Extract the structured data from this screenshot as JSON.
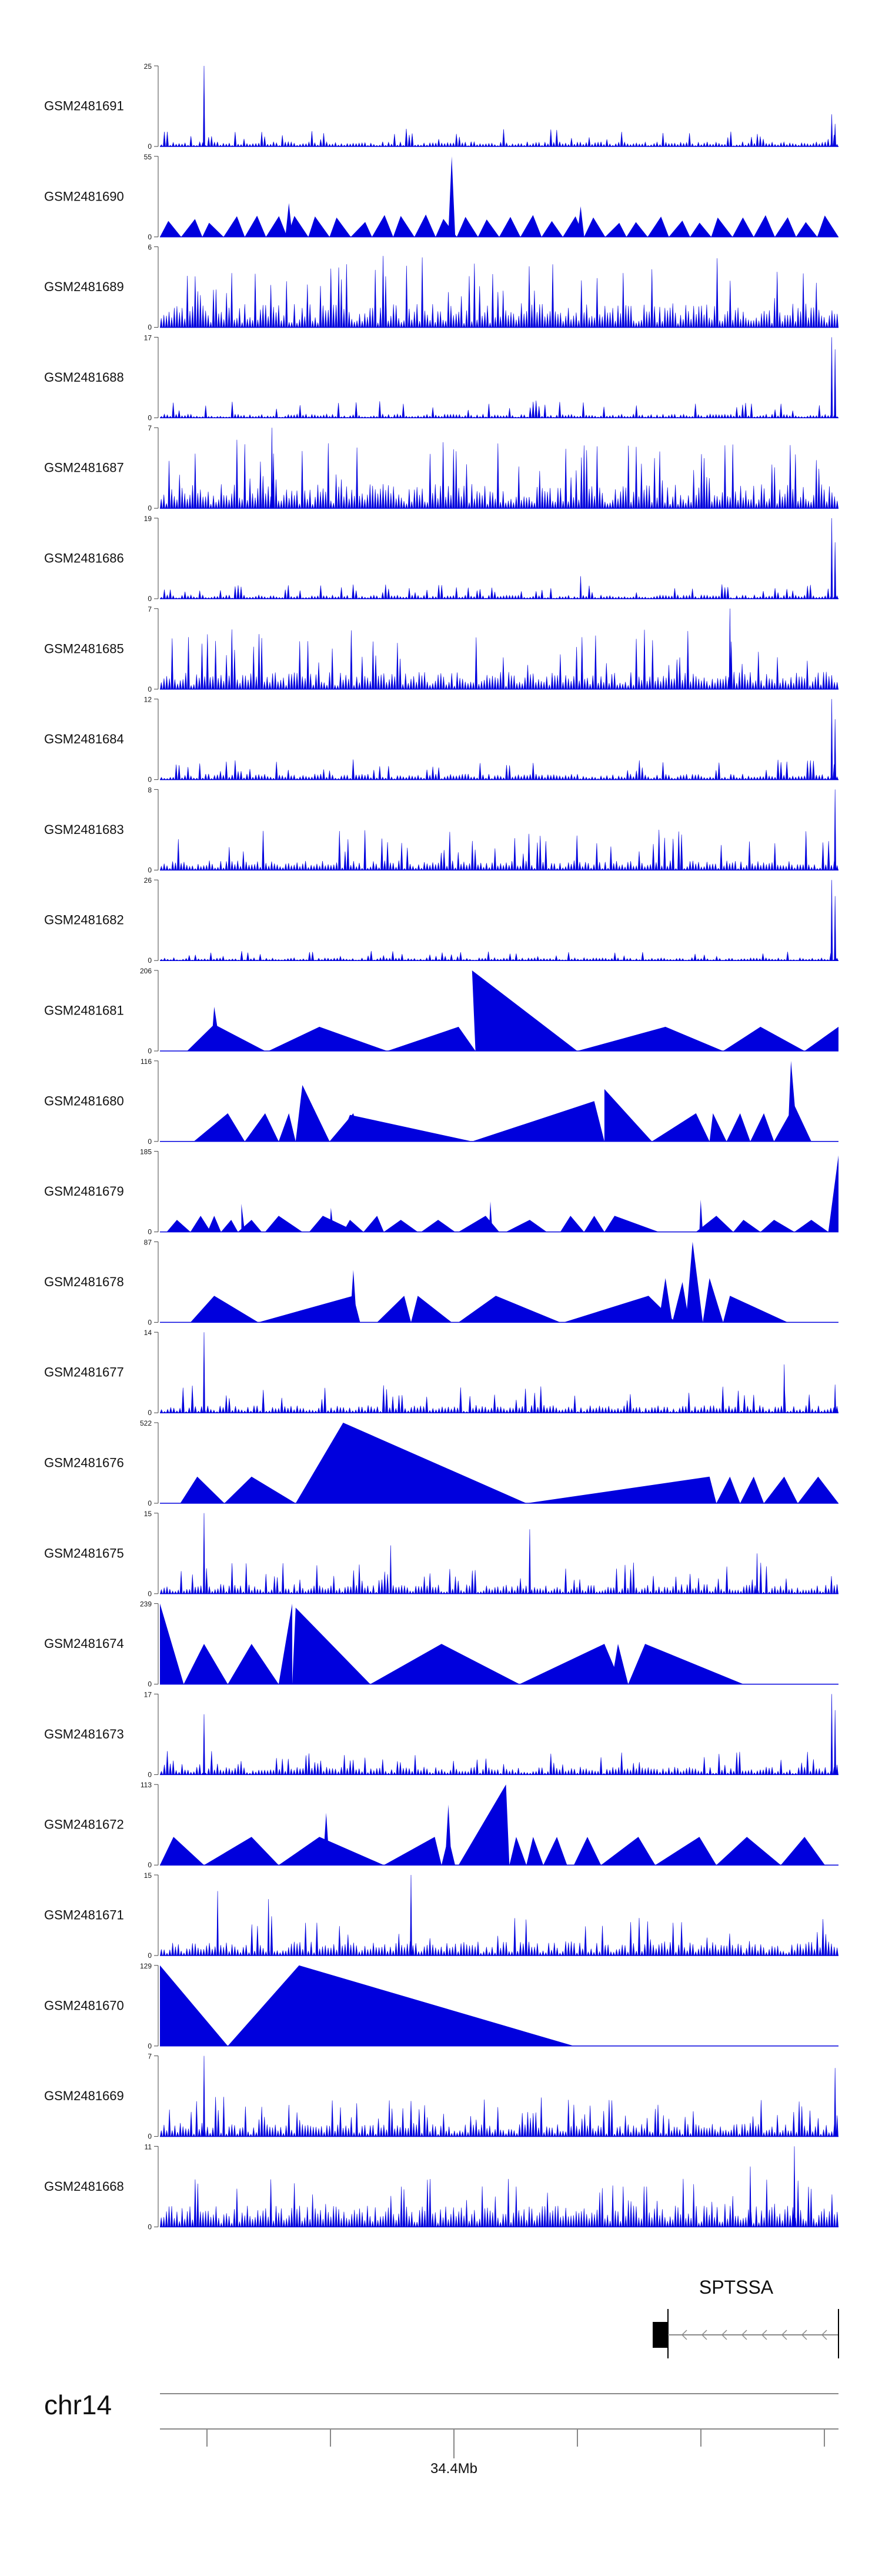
{
  "chart_data": {
    "type": "area",
    "title": "",
    "chromosome": "chr14",
    "xlabel": "34.4Mb",
    "gene": {
      "name": "SPTSSA",
      "strand": "-"
    },
    "colors": {
      "signal": "#0000dd",
      "axis": "#444444",
      "text": "#111111",
      "gene": "#000000"
    },
    "ylim_min": 0,
    "tracks": [
      {
        "name": "GSM2481691",
        "ymax": 25,
        "pattern": "spiky",
        "density": 230,
        "base": 0.05,
        "spike": 0.22,
        "seed": 11,
        "peaks": [
          [
            0.065,
            1.0
          ],
          [
            0.99,
            0.4
          ],
          [
            0.995,
            0.28
          ]
        ]
      },
      {
        "name": "GSM2481690",
        "ymax": 55,
        "pattern": "tri",
        "triCount": 32,
        "triAmp": 0.28,
        "seed": 22,
        "peaks": [
          [
            0.19,
            0.42
          ],
          [
            0.43,
            1.0
          ],
          [
            0.62,
            0.38
          ]
        ]
      },
      {
        "name": "GSM2481689",
        "ymax": 6,
        "pattern": "spiky",
        "density": 260,
        "base": 0.25,
        "spike": 0.9,
        "seed": 33,
        "peaks": []
      },
      {
        "name": "GSM2481688",
        "ymax": 17,
        "pattern": "spiky",
        "density": 230,
        "base": 0.04,
        "spike": 0.22,
        "seed": 44,
        "peaks": [
          [
            0.99,
            1.0
          ],
          [
            0.995,
            0.85
          ]
        ]
      },
      {
        "name": "GSM2481687",
        "ymax": 7,
        "pattern": "spiky",
        "density": 260,
        "base": 0.25,
        "spike": 0.85,
        "seed": 55,
        "peaks": [
          [
            0.165,
            1.0
          ]
        ]
      },
      {
        "name": "GSM2481686",
        "ymax": 19,
        "pattern": "spiky",
        "density": 230,
        "base": 0.04,
        "spike": 0.18,
        "seed": 66,
        "peaks": [
          [
            0.62,
            0.28
          ],
          [
            0.99,
            1.0
          ],
          [
            0.995,
            0.7
          ]
        ]
      },
      {
        "name": "GSM2481685",
        "ymax": 7,
        "pattern": "spiky",
        "density": 250,
        "base": 0.18,
        "spike": 0.75,
        "seed": 77,
        "peaks": [
          [
            0.84,
            1.0
          ]
        ]
      },
      {
        "name": "GSM2481684",
        "ymax": 12,
        "pattern": "spiky",
        "density": 230,
        "base": 0.06,
        "spike": 0.25,
        "seed": 88,
        "peaks": [
          [
            0.99,
            1.0
          ],
          [
            0.995,
            0.75
          ]
        ]
      },
      {
        "name": "GSM2481683",
        "ymax": 8,
        "pattern": "spiky",
        "density": 240,
        "base": 0.1,
        "spike": 0.5,
        "seed": 99,
        "peaks": [
          [
            0.995,
            1.0
          ]
        ]
      },
      {
        "name": "GSM2481682",
        "ymax": 26,
        "pattern": "spiky",
        "density": 220,
        "base": 0.03,
        "spike": 0.12,
        "seed": 111,
        "peaks": [
          [
            0.99,
            1.0
          ],
          [
            0.995,
            0.8
          ]
        ]
      },
      {
        "name": "GSM2481681",
        "ymax": 206,
        "pattern": "tris",
        "tris": [
          [
            0.04,
            0.155,
            0.08,
            0.33
          ],
          [
            0.16,
            0.335,
            0.235,
            0.3
          ],
          [
            0.335,
            0.465,
            0.44,
            0.3
          ],
          [
            0.465,
            0.615,
            0.46,
            1.0
          ],
          [
            0.615,
            0.83,
            0.745,
            0.3
          ],
          [
            0.83,
            0.95,
            0.885,
            0.3
          ],
          [
            0.95,
            1.0,
            1.0,
            0.3
          ],
          [
            0.075,
            0.09,
            0.08,
            0.55
          ]
        ]
      },
      {
        "name": "GSM2481680",
        "ymax": 116,
        "pattern": "tris",
        "tris": [
          [
            0.05,
            0.125,
            0.1,
            0.35
          ],
          [
            0.125,
            0.175,
            0.155,
            0.35
          ],
          [
            0.175,
            0.2,
            0.19,
            0.35
          ],
          [
            0.2,
            0.25,
            0.21,
            0.7
          ],
          [
            0.25,
            0.295,
            0.285,
            0.35
          ],
          [
            0.265,
            0.46,
            0.28,
            0.33
          ],
          [
            0.46,
            0.655,
            0.64,
            0.5
          ],
          [
            0.655,
            0.725,
            0.655,
            0.65
          ],
          [
            0.725,
            0.81,
            0.79,
            0.35
          ],
          [
            0.81,
            0.835,
            0.815,
            0.35
          ],
          [
            0.835,
            0.87,
            0.855,
            0.35
          ],
          [
            0.87,
            0.905,
            0.89,
            0.35
          ],
          [
            0.905,
            0.96,
            0.935,
            0.45
          ],
          [
            0.925,
            0.94,
            0.93,
            1.0
          ]
        ]
      },
      {
        "name": "GSM2481679",
        "ymax": 185,
        "pattern": "tris",
        "tris": [
          [
            0.01,
            0.045,
            0.025,
            0.15
          ],
          [
            0.045,
            0.075,
            0.06,
            0.2
          ],
          [
            0.07,
            0.09,
            0.08,
            0.2
          ],
          [
            0.09,
            0.115,
            0.105,
            0.15
          ],
          [
            0.115,
            0.15,
            0.135,
            0.15
          ],
          [
            0.155,
            0.21,
            0.175,
            0.2
          ],
          [
            0.22,
            0.29,
            0.24,
            0.2
          ],
          [
            0.27,
            0.3,
            0.28,
            0.15
          ],
          [
            0.3,
            0.33,
            0.32,
            0.2
          ],
          [
            0.33,
            0.38,
            0.355,
            0.15
          ],
          [
            0.385,
            0.435,
            0.41,
            0.15
          ],
          [
            0.44,
            0.5,
            0.48,
            0.2
          ],
          [
            0.51,
            0.57,
            0.545,
            0.15
          ],
          [
            0.59,
            0.625,
            0.605,
            0.2
          ],
          [
            0.625,
            0.655,
            0.64,
            0.2
          ],
          [
            0.655,
            0.735,
            0.67,
            0.2
          ],
          [
            0.79,
            0.845,
            0.82,
            0.2
          ],
          [
            0.845,
            0.885,
            0.86,
            0.15
          ],
          [
            0.885,
            0.935,
            0.905,
            0.15
          ],
          [
            0.935,
            0.985,
            0.96,
            0.15
          ],
          [
            0.985,
            1.0,
            1.0,
            0.95
          ],
          [
            0.12,
            0.125,
            0.12,
            0.35
          ],
          [
            0.25,
            0.256,
            0.252,
            0.3
          ],
          [
            0.485,
            0.49,
            0.487,
            0.38
          ],
          [
            0.795,
            0.8,
            0.797,
            0.4
          ]
        ]
      },
      {
        "name": "GSM2481678",
        "ymax": 87,
        "pattern": "tris",
        "tris": [
          [
            0.045,
            0.145,
            0.08,
            0.33
          ],
          [
            0.145,
            0.295,
            0.285,
            0.33
          ],
          [
            0.28,
            0.29,
            0.285,
            0.65
          ],
          [
            0.32,
            0.37,
            0.36,
            0.33
          ],
          [
            0.37,
            0.43,
            0.38,
            0.33
          ],
          [
            0.44,
            0.59,
            0.495,
            0.33
          ],
          [
            0.595,
            0.76,
            0.72,
            0.33
          ],
          [
            0.735,
            0.755,
            0.745,
            0.55
          ],
          [
            0.755,
            0.78,
            0.77,
            0.5
          ],
          [
            0.775,
            0.8,
            0.785,
            1.0
          ],
          [
            0.8,
            0.83,
            0.81,
            0.55
          ],
          [
            0.83,
            0.925,
            0.84,
            0.33
          ]
        ]
      },
      {
        "name": "GSM2481677",
        "ymax": 14,
        "pattern": "spiky",
        "density": 220,
        "base": 0.08,
        "spike": 0.35,
        "seed": 177,
        "peaks": [
          [
            0.065,
            1.0
          ],
          [
            0.92,
            0.6
          ],
          [
            0.995,
            0.35
          ]
        ]
      },
      {
        "name": "GSM2481676",
        "ymax": 522,
        "pattern": "tris",
        "tris": [
          [
            0.03,
            0.095,
            0.055,
            0.33
          ],
          [
            0.095,
            0.2,
            0.135,
            0.33
          ],
          [
            0.2,
            0.54,
            0.27,
            1.0
          ],
          [
            0.54,
            0.82,
            0.81,
            0.33
          ],
          [
            0.82,
            0.855,
            0.84,
            0.33
          ],
          [
            0.855,
            0.89,
            0.875,
            0.33
          ],
          [
            0.89,
            0.94,
            0.92,
            0.33
          ],
          [
            0.94,
            1.0,
            0.97,
            0.33
          ]
        ]
      },
      {
        "name": "GSM2481675",
        "ymax": 15,
        "pattern": "spiky",
        "density": 240,
        "base": 0.1,
        "spike": 0.4,
        "seed": 188,
        "peaks": [
          [
            0.065,
            1.0
          ],
          [
            0.34,
            0.6
          ],
          [
            0.545,
            0.8
          ],
          [
            0.88,
            0.5
          ]
        ]
      },
      {
        "name": "GSM2481674",
        "ymax": 239,
        "pattern": "tris",
        "tris": [
          [
            0.0,
            0.035,
            0.0,
            1.0
          ],
          [
            0.035,
            0.1,
            0.065,
            0.5
          ],
          [
            0.1,
            0.175,
            0.135,
            0.5
          ],
          [
            0.175,
            0.195,
            0.195,
            1.0
          ],
          [
            0.195,
            0.31,
            0.2,
            0.95
          ],
          [
            0.31,
            0.53,
            0.415,
            0.5
          ],
          [
            0.53,
            0.68,
            0.655,
            0.5
          ],
          [
            0.665,
            0.69,
            0.675,
            0.5
          ],
          [
            0.69,
            0.86,
            0.715,
            0.5
          ]
        ]
      },
      {
        "name": "GSM2481673",
        "ymax": 17,
        "pattern": "spiky",
        "density": 230,
        "base": 0.08,
        "spike": 0.3,
        "seed": 199,
        "peaks": [
          [
            0.065,
            0.75
          ],
          [
            0.99,
            1.0
          ],
          [
            0.995,
            0.8
          ]
        ]
      },
      {
        "name": "GSM2481672",
        "ymax": 113,
        "pattern": "tris",
        "tris": [
          [
            0.0,
            0.065,
            0.02,
            0.35
          ],
          [
            0.065,
            0.175,
            0.135,
            0.35
          ],
          [
            0.175,
            0.33,
            0.235,
            0.35
          ],
          [
            0.24,
            0.25,
            0.245,
            0.65
          ],
          [
            0.33,
            0.415,
            0.405,
            0.35
          ],
          [
            0.415,
            0.435,
            0.425,
            0.35
          ],
          [
            0.42,
            0.43,
            0.425,
            0.75
          ],
          [
            0.44,
            0.515,
            0.51,
            1.0
          ],
          [
            0.515,
            0.54,
            0.525,
            0.35
          ],
          [
            0.54,
            0.565,
            0.55,
            0.35
          ],
          [
            0.565,
            0.6,
            0.585,
            0.35
          ],
          [
            0.61,
            0.65,
            0.63,
            0.35
          ],
          [
            0.65,
            0.73,
            0.705,
            0.35
          ],
          [
            0.73,
            0.82,
            0.795,
            0.35
          ],
          [
            0.82,
            0.915,
            0.865,
            0.35
          ],
          [
            0.915,
            0.98,
            0.95,
            0.35
          ]
        ]
      },
      {
        "name": "GSM2481671",
        "ymax": 15,
        "pattern": "spiky",
        "density": 240,
        "base": 0.15,
        "spike": 0.5,
        "seed": 211,
        "peaks": [
          [
            0.37,
            1.0
          ],
          [
            0.085,
            0.8
          ],
          [
            0.16,
            0.7
          ]
        ]
      },
      {
        "name": "GSM2481670",
        "ymax": 129,
        "pattern": "tris",
        "tris": [
          [
            0.0,
            0.1,
            0.0,
            1.0
          ],
          [
            0.1,
            0.61,
            0.205,
            1.0
          ]
        ]
      },
      {
        "name": "GSM2481669",
        "ymax": 7,
        "pattern": "spiky",
        "density": 250,
        "base": 0.14,
        "spike": 0.5,
        "seed": 222,
        "peaks": [
          [
            0.065,
            1.0
          ],
          [
            0.995,
            0.85
          ]
        ]
      },
      {
        "name": "GSM2481668",
        "ymax": 11,
        "pattern": "spiky",
        "density": 260,
        "base": 0.22,
        "spike": 0.6,
        "seed": 233,
        "peaks": [
          [
            0.935,
            1.0
          ],
          [
            0.87,
            0.75
          ]
        ]
      }
    ]
  }
}
